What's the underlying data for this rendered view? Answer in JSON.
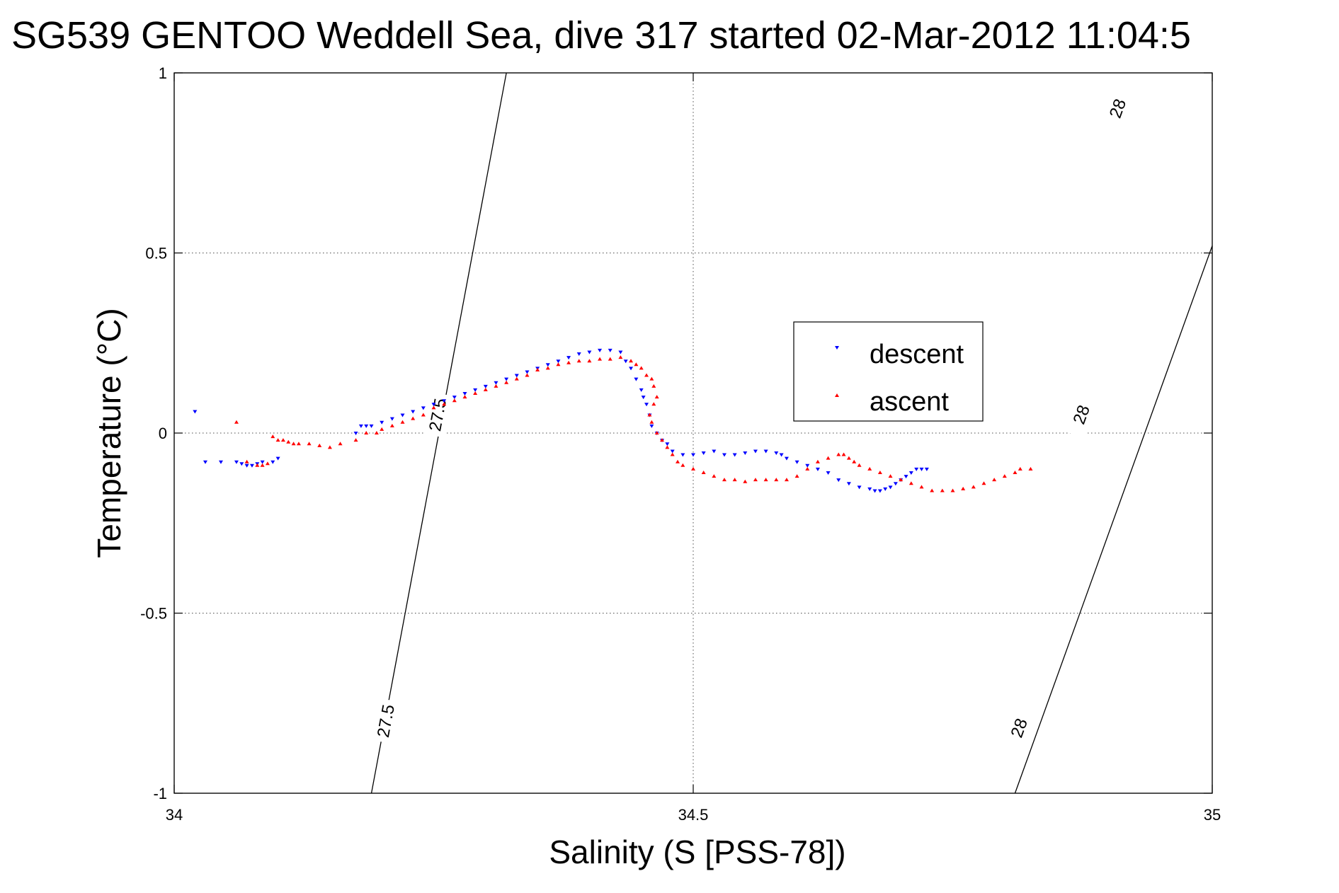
{
  "chart_data": {
    "type": "scatter",
    "title": "SG539 GENTOO Weddell Sea, dive 317 started 02-Mar-2012 11:04:5",
    "xlabel": "Salinity (S [PSS-78])",
    "ylabel": "Temperature (°C)",
    "xlim": [
      34,
      35
    ],
    "ylim": [
      -1,
      1
    ],
    "xticks": [
      34,
      34.5,
      35
    ],
    "yticks": [
      -1,
      -0.5,
      0,
      0.5,
      1
    ],
    "xtick_labels": [
      "34",
      "34.5",
      "35"
    ],
    "ytick_labels": [
      "-1",
      "-0.5",
      "0",
      "0.5",
      "1"
    ],
    "grid": true,
    "legend_position": "right-center",
    "series": [
      {
        "name": "descent",
        "marker": "triangle-down",
        "color": "#0000ff",
        "points": [
          [
            34.02,
            0.06
          ],
          [
            34.03,
            -0.08
          ],
          [
            34.045,
            -0.08
          ],
          [
            34.06,
            -0.08
          ],
          [
            34.065,
            -0.085
          ],
          [
            34.07,
            -0.09
          ],
          [
            34.075,
            -0.09
          ],
          [
            34.08,
            -0.085
          ],
          [
            34.085,
            -0.08
          ],
          [
            34.095,
            -0.08
          ],
          [
            34.1,
            -0.07
          ],
          [
            34.175,
            0.0
          ],
          [
            34.18,
            0.02
          ],
          [
            34.185,
            0.02
          ],
          [
            34.19,
            0.02
          ],
          [
            34.2,
            0.03
          ],
          [
            34.21,
            0.04
          ],
          [
            34.22,
            0.05
          ],
          [
            34.23,
            0.06
          ],
          [
            34.24,
            0.07
          ],
          [
            34.25,
            0.08
          ],
          [
            34.26,
            0.09
          ],
          [
            34.27,
            0.1
          ],
          [
            34.28,
            0.11
          ],
          [
            34.29,
            0.12
          ],
          [
            34.3,
            0.13
          ],
          [
            34.31,
            0.14
          ],
          [
            34.32,
            0.15
          ],
          [
            34.33,
            0.16
          ],
          [
            34.34,
            0.17
          ],
          [
            34.35,
            0.18
          ],
          [
            34.36,
            0.19
          ],
          [
            34.37,
            0.2
          ],
          [
            34.38,
            0.21
          ],
          [
            34.39,
            0.22
          ],
          [
            34.4,
            0.225
          ],
          [
            34.41,
            0.23
          ],
          [
            34.42,
            0.23
          ],
          [
            34.43,
            0.225
          ],
          [
            34.435,
            0.2
          ],
          [
            34.44,
            0.18
          ],
          [
            34.445,
            0.15
          ],
          [
            34.45,
            0.12
          ],
          [
            34.452,
            0.1
          ],
          [
            34.455,
            0.08
          ],
          [
            34.458,
            0.05
          ],
          [
            34.46,
            0.02
          ],
          [
            34.465,
            0.0
          ],
          [
            34.47,
            -0.02
          ],
          [
            34.475,
            -0.03
          ],
          [
            34.48,
            -0.05
          ],
          [
            34.49,
            -0.06
          ],
          [
            34.5,
            -0.06
          ],
          [
            34.51,
            -0.055
          ],
          [
            34.52,
            -0.05
          ],
          [
            34.53,
            -0.06
          ],
          [
            34.54,
            -0.06
          ],
          [
            34.55,
            -0.055
          ],
          [
            34.56,
            -0.05
          ],
          [
            34.57,
            -0.05
          ],
          [
            34.58,
            -0.055
          ],
          [
            34.585,
            -0.06
          ],
          [
            34.59,
            -0.07
          ],
          [
            34.6,
            -0.08
          ],
          [
            34.61,
            -0.09
          ],
          [
            34.62,
            -0.1
          ],
          [
            34.63,
            -0.11
          ],
          [
            34.64,
            -0.13
          ],
          [
            34.65,
            -0.14
          ],
          [
            34.66,
            -0.15
          ],
          [
            34.67,
            -0.155
          ],
          [
            34.675,
            -0.16
          ],
          [
            34.68,
            -0.16
          ],
          [
            34.685,
            -0.155
          ],
          [
            34.69,
            -0.15
          ],
          [
            34.695,
            -0.14
          ],
          [
            34.7,
            -0.13
          ],
          [
            34.705,
            -0.12
          ],
          [
            34.71,
            -0.11
          ],
          [
            34.715,
            -0.1
          ],
          [
            34.72,
            -0.1
          ],
          [
            34.725,
            -0.1
          ]
        ]
      },
      {
        "name": "ascent",
        "marker": "triangle-up",
        "color": "#ff0000",
        "points": [
          [
            34.06,
            0.03
          ],
          [
            34.07,
            -0.08
          ],
          [
            34.08,
            -0.09
          ],
          [
            34.085,
            -0.09
          ],
          [
            34.09,
            -0.085
          ],
          [
            34.095,
            -0.01
          ],
          [
            34.1,
            -0.02
          ],
          [
            34.105,
            -0.02
          ],
          [
            34.11,
            -0.025
          ],
          [
            34.115,
            -0.03
          ],
          [
            34.12,
            -0.03
          ],
          [
            34.13,
            -0.03
          ],
          [
            34.14,
            -0.035
          ],
          [
            34.15,
            -0.04
          ],
          [
            34.16,
            -0.03
          ],
          [
            34.175,
            -0.02
          ],
          [
            34.185,
            0.0
          ],
          [
            34.195,
            0.0
          ],
          [
            34.2,
            0.01
          ],
          [
            34.21,
            0.02
          ],
          [
            34.22,
            0.03
          ],
          [
            34.23,
            0.04
          ],
          [
            34.24,
            0.05
          ],
          [
            34.25,
            0.07
          ],
          [
            34.26,
            0.08
          ],
          [
            34.27,
            0.09
          ],
          [
            34.28,
            0.1
          ],
          [
            34.29,
            0.11
          ],
          [
            34.3,
            0.12
          ],
          [
            34.31,
            0.13
          ],
          [
            34.32,
            0.14
          ],
          [
            34.33,
            0.15
          ],
          [
            34.34,
            0.16
          ],
          [
            34.35,
            0.175
          ],
          [
            34.36,
            0.18
          ],
          [
            34.37,
            0.19
          ],
          [
            34.38,
            0.195
          ],
          [
            34.39,
            0.2
          ],
          [
            34.4,
            0.2
          ],
          [
            34.41,
            0.205
          ],
          [
            34.42,
            0.205
          ],
          [
            34.43,
            0.21
          ],
          [
            34.44,
            0.2
          ],
          [
            34.445,
            0.19
          ],
          [
            34.45,
            0.18
          ],
          [
            34.455,
            0.16
          ],
          [
            34.46,
            0.15
          ],
          [
            34.462,
            0.13
          ],
          [
            34.465,
            0.1
          ],
          [
            34.462,
            0.08
          ],
          [
            34.458,
            0.05
          ],
          [
            34.46,
            0.03
          ],
          [
            34.465,
            0.0
          ],
          [
            34.47,
            -0.02
          ],
          [
            34.475,
            -0.04
          ],
          [
            34.48,
            -0.06
          ],
          [
            34.485,
            -0.08
          ],
          [
            34.49,
            -0.09
          ],
          [
            34.5,
            -0.1
          ],
          [
            34.51,
            -0.11
          ],
          [
            34.52,
            -0.12
          ],
          [
            34.53,
            -0.13
          ],
          [
            34.54,
            -0.13
          ],
          [
            34.55,
            -0.135
          ],
          [
            34.56,
            -0.13
          ],
          [
            34.57,
            -0.13
          ],
          [
            34.58,
            -0.13
          ],
          [
            34.59,
            -0.13
          ],
          [
            34.6,
            -0.12
          ],
          [
            34.61,
            -0.1
          ],
          [
            34.62,
            -0.08
          ],
          [
            34.63,
            -0.07
          ],
          [
            34.64,
            -0.06
          ],
          [
            34.645,
            -0.06
          ],
          [
            34.65,
            -0.07
          ],
          [
            34.655,
            -0.08
          ],
          [
            34.66,
            -0.09
          ],
          [
            34.67,
            -0.1
          ],
          [
            34.68,
            -0.11
          ],
          [
            34.69,
            -0.12
          ],
          [
            34.7,
            -0.13
          ],
          [
            34.71,
            -0.14
          ],
          [
            34.72,
            -0.15
          ],
          [
            34.73,
            -0.16
          ],
          [
            34.74,
            -0.16
          ],
          [
            34.75,
            -0.16
          ],
          [
            34.76,
            -0.155
          ],
          [
            34.77,
            -0.15
          ],
          [
            34.78,
            -0.14
          ],
          [
            34.79,
            -0.13
          ],
          [
            34.8,
            -0.12
          ],
          [
            34.81,
            -0.11
          ],
          [
            34.815,
            -0.1
          ],
          [
            34.825,
            -0.1
          ]
        ]
      }
    ],
    "contours": [
      {
        "label": "27.5",
        "line": [
          [
            34.19,
            -1
          ],
          [
            34.32,
            1
          ]
        ],
        "label_positions": [
          [
            34.205,
            -0.8
          ],
          [
            34.255,
            0.05
          ]
        ]
      },
      {
        "label": "28",
        "line": [
          [
            34.81,
            -1
          ],
          [
            35.0,
            0.52
          ]
        ],
        "label_positions": [
          [
            34.815,
            -0.82
          ],
          [
            34.875,
            0.05
          ],
          [
            34.91,
            0.9
          ]
        ]
      }
    ]
  }
}
